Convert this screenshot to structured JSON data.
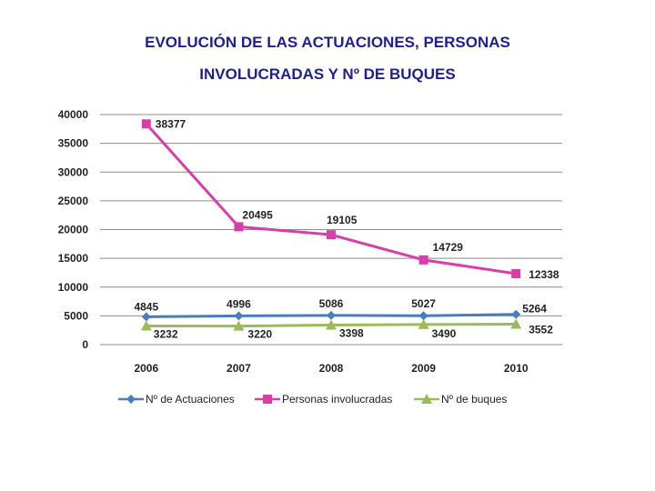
{
  "title_lines": [
    "EVOLUCIÓN DE LAS ACTUACIONES, PERSONAS",
    "INVOLUCRADAS Y Nº DE BUQUES"
  ],
  "chart_data": {
    "type": "line",
    "title": "EVOLUCIÓN DE LAS ACTUACIONES, PERSONAS INVOLUCRADAS Y Nº DE BUQUES",
    "xlabel": "",
    "ylabel": "",
    "x": [
      "2006",
      "2007",
      "2008",
      "2009",
      "2010"
    ],
    "ylim": [
      0,
      40000
    ],
    "yticks": [
      "0",
      "5000",
      "10000",
      "15000",
      "20000",
      "25000",
      "30000",
      "35000",
      "40000"
    ],
    "grid": true,
    "legend_position": "bottom",
    "series": [
      {
        "name": "Nº de Actuaciones",
        "values": [
          4845,
          4996,
          5086,
          5027,
          5264
        ],
        "labels": [
          "4845",
          "4996",
          "5086",
          "5027",
          "5264"
        ],
        "color": "#4a7ebb",
        "marker": "diamond"
      },
      {
        "name": "Personas involucradas",
        "values": [
          38377,
          20495,
          19105,
          14729,
          12338
        ],
        "labels": [
          "38377",
          "20495",
          "19105",
          "14729",
          "12338"
        ],
        "color": "#d63fa8",
        "marker": "square"
      },
      {
        "name": "Nº de buques",
        "values": [
          3232,
          3220,
          3398,
          3490,
          3552
        ],
        "labels": [
          "3232",
          "3220",
          "3398",
          "3490",
          "3552"
        ],
        "color": "#9bbb59",
        "marker": "triangle"
      }
    ]
  }
}
